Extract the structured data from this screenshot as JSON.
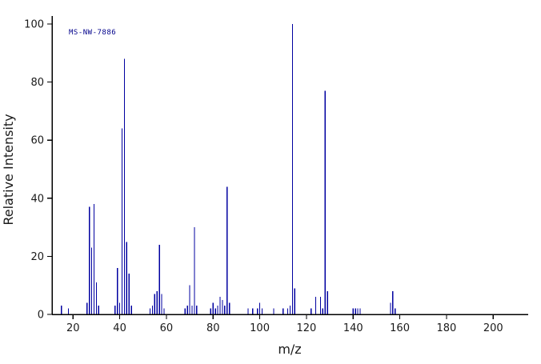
{
  "chart_data": {
    "type": "bar",
    "subtype": "mass-spectrum",
    "annotation": "MS-NW-7886",
    "xlabel": "m/z",
    "ylabel": "Relative Intensity",
    "xlim": [
      11,
      215
    ],
    "ylim": [
      0,
      100
    ],
    "grid": false,
    "legend": "none",
    "x_ticks": [
      20,
      40,
      60,
      80,
      100,
      120,
      140,
      160,
      180,
      200
    ],
    "y_ticks": [
      0,
      20,
      40,
      60,
      80,
      100
    ],
    "peaks": [
      [
        15,
        3
      ],
      [
        18,
        2
      ],
      [
        26,
        4
      ],
      [
        27,
        37
      ],
      [
        28,
        23
      ],
      [
        29,
        38
      ],
      [
        30,
        11
      ],
      [
        31,
        3
      ],
      [
        38,
        3
      ],
      [
        39,
        16
      ],
      [
        40,
        4
      ],
      [
        41,
        64
      ],
      [
        42,
        88
      ],
      [
        43,
        25
      ],
      [
        44,
        14
      ],
      [
        45,
        3
      ],
      [
        53,
        2
      ],
      [
        54,
        3
      ],
      [
        55,
        7
      ],
      [
        56,
        8
      ],
      [
        57,
        24
      ],
      [
        58,
        7
      ],
      [
        59,
        2
      ],
      [
        68,
        2
      ],
      [
        69,
        3
      ],
      [
        70,
        10
      ],
      [
        71,
        3
      ],
      [
        72,
        30
      ],
      [
        73,
        3
      ],
      [
        79,
        2
      ],
      [
        80,
        4
      ],
      [
        81,
        2
      ],
      [
        82,
        3
      ],
      [
        83,
        6
      ],
      [
        84,
        5
      ],
      [
        85,
        3
      ],
      [
        86,
        44
      ],
      [
        87,
        4
      ],
      [
        95,
        2
      ],
      [
        97,
        2
      ],
      [
        99,
        2
      ],
      [
        100,
        4
      ],
      [
        101,
        2
      ],
      [
        106,
        2
      ],
      [
        110,
        2
      ],
      [
        112,
        2
      ],
      [
        113,
        3
      ],
      [
        114,
        100
      ],
      [
        115,
        9
      ],
      [
        122,
        2
      ],
      [
        124,
        6
      ],
      [
        126,
        6
      ],
      [
        127,
        2
      ],
      [
        128,
        77
      ],
      [
        129,
        8
      ],
      [
        140,
        2
      ],
      [
        141,
        2
      ],
      [
        142,
        2
      ],
      [
        143,
        2
      ],
      [
        156,
        4
      ],
      [
        157,
        8
      ],
      [
        158,
        2
      ]
    ]
  },
  "colors": {
    "peak": "#0000a0",
    "annotation": "#00008b",
    "axis": "#000000",
    "text": "#1a1a1a",
    "background": "#ffffff"
  }
}
